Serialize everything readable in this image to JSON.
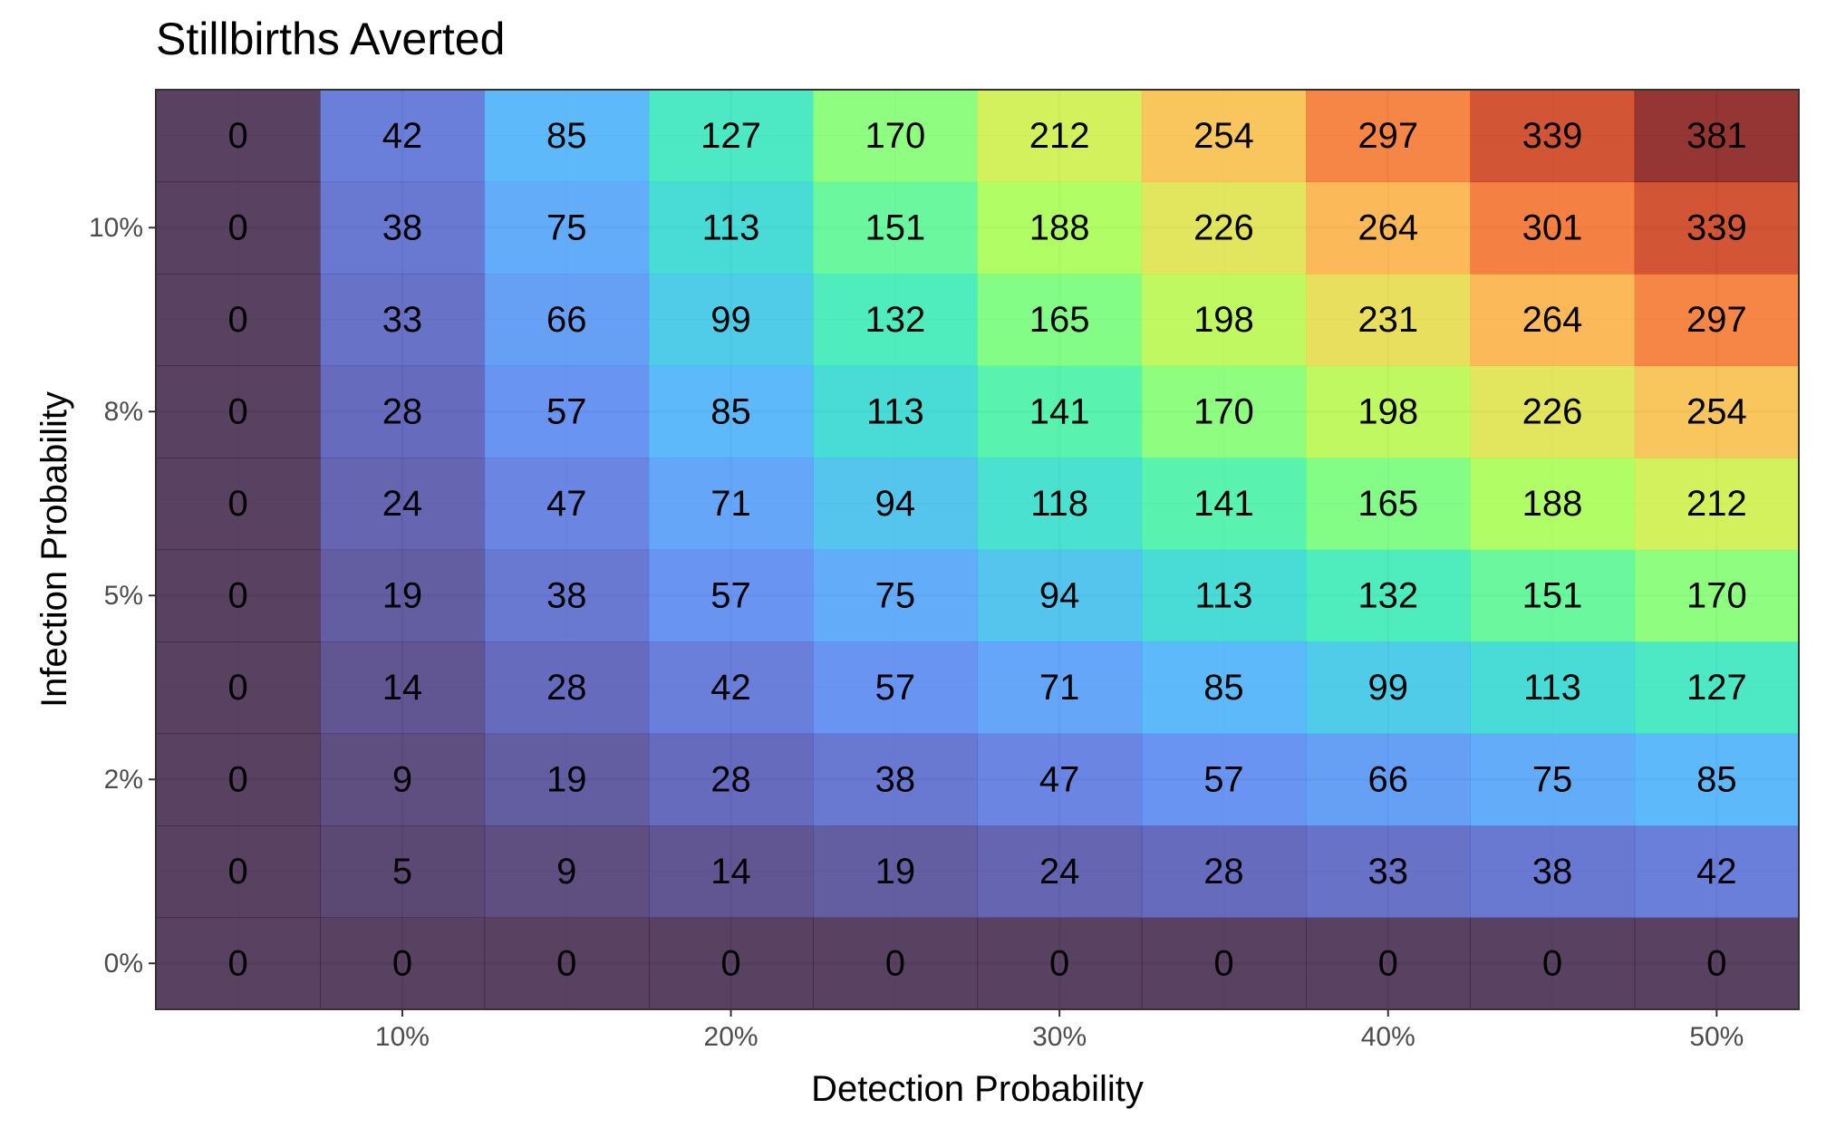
{
  "chart_data": {
    "type": "heatmap",
    "title": "Stillbirths Averted",
    "xlabel": "Detection Probability",
    "ylabel": "Infection Probability",
    "x": [
      0.05,
      0.1,
      0.15,
      0.2,
      0.25,
      0.3,
      0.35,
      0.4,
      0.45,
      0.5
    ],
    "y": [
      0.0,
      0.0125,
      0.025,
      0.0375,
      0.05,
      0.0625,
      0.075,
      0.0875,
      0.1,
      0.1125
    ],
    "xlim": [
      0.025,
      0.525
    ],
    "ylim": [
      -0.00625,
      0.11875
    ],
    "x_ticks": [
      0.1,
      0.2,
      0.3,
      0.4,
      0.5
    ],
    "x_tick_labels": [
      "10%",
      "20%",
      "30%",
      "40%",
      "50%"
    ],
    "y_ticks": [
      0.0,
      0.025,
      0.05,
      0.075,
      0.1
    ],
    "y_tick_labels": [
      "0%",
      "2%",
      "5%",
      "8%",
      "10%"
    ],
    "values": [
      [
        0,
        0,
        0,
        0,
        0,
        0,
        0,
        0,
        0,
        0
      ],
      [
        0,
        5,
        9,
        14,
        19,
        24,
        28,
        33,
        38,
        42
      ],
      [
        0,
        9,
        19,
        28,
        38,
        47,
        57,
        66,
        75,
        85
      ],
      [
        0,
        14,
        28,
        42,
        57,
        71,
        85,
        99,
        113,
        127
      ],
      [
        0,
        19,
        38,
        57,
        75,
        94,
        113,
        132,
        151,
        170
      ],
      [
        0,
        24,
        47,
        71,
        94,
        118,
        141,
        165,
        188,
        212
      ],
      [
        0,
        28,
        57,
        85,
        113,
        141,
        170,
        198,
        226,
        254
      ],
      [
        0,
        33,
        66,
        99,
        132,
        165,
        198,
        231,
        264,
        297
      ],
      [
        0,
        38,
        75,
        113,
        151,
        188,
        226,
        264,
        301,
        339
      ],
      [
        0,
        42,
        85,
        127,
        170,
        212,
        254,
        297,
        339,
        381
      ]
    ],
    "value_range": [
      0,
      381
    ],
    "colormap": [
      "#30123b",
      "#4145ab",
      "#4675ed",
      "#39a2fc",
      "#1bcfd4",
      "#24eca6",
      "#61fc6c",
      "#a4fc3b",
      "#d1e834",
      "#f3c63a",
      "#fe9b2d",
      "#f36315",
      "#d93806",
      "#b11901",
      "#7a0402"
    ],
    "cell_alpha": 0.8,
    "grid": true,
    "legend": "none"
  }
}
